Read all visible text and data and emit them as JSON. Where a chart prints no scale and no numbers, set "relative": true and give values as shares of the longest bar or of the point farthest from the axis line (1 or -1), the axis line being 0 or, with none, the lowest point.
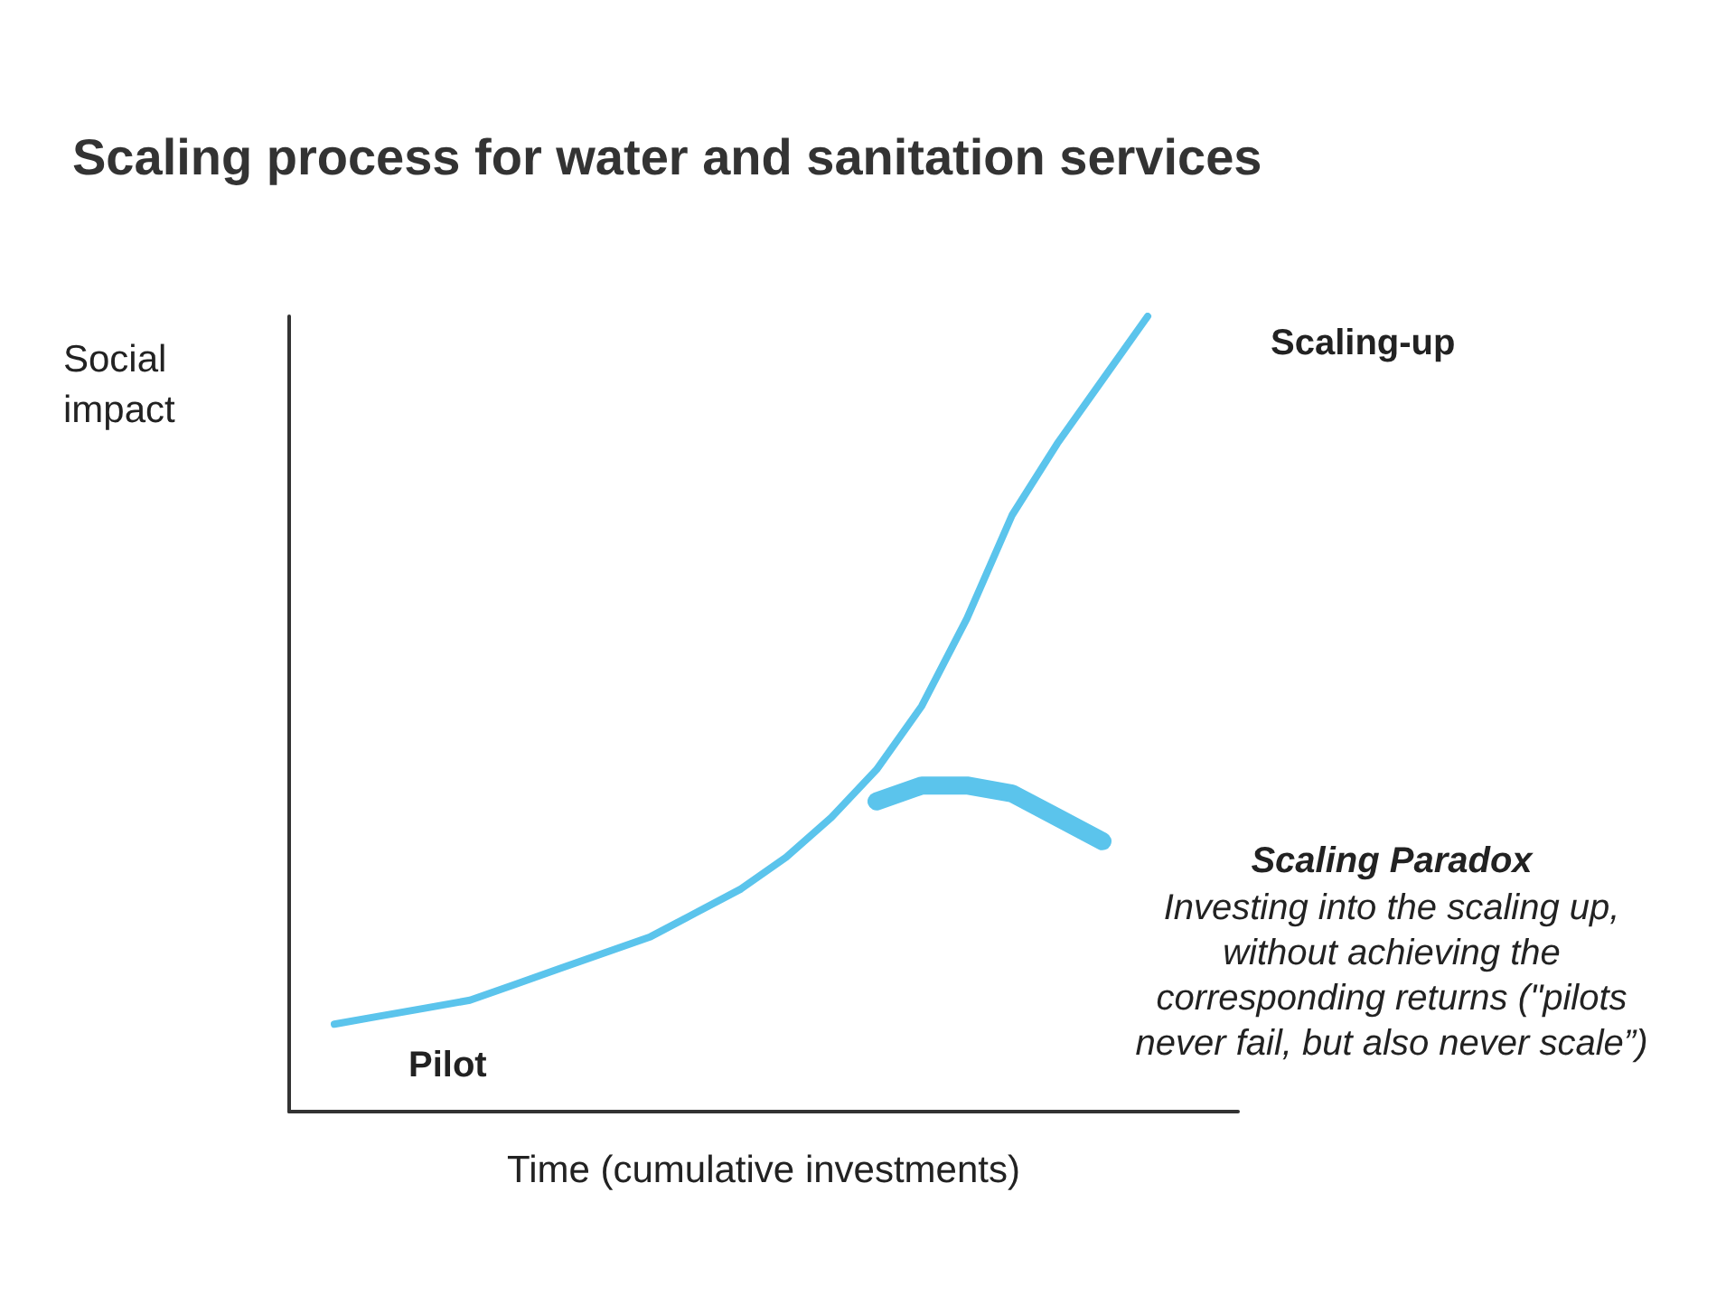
{
  "chart_data": {
    "type": "line",
    "relative": true,
    "title": "Scaling process for water and sanitation services",
    "xlabel": "Time (cumulative investments)",
    "ylabel": "Social impact",
    "legend": false,
    "grid": false,
    "marker": "none",
    "categories": [
      null,
      null,
      null,
      null,
      null,
      null,
      null,
      null,
      null,
      null,
      null,
      null,
      null,
      null,
      null,
      null,
      null,
      null,
      null,
      null,
      null,
      null
    ],
    "series": [
      {
        "name": "Scaling-up",
        "color": "#5bc4ec",
        "values": [
          null,
          0.11,
          0.12,
          0.13,
          0.14,
          0.16,
          0.18,
          0.2,
          0.22,
          0.25,
          0.28,
          0.32,
          0.37,
          0.43,
          0.51,
          0.62,
          0.75,
          0.84,
          0.92,
          1.0,
          null,
          null
        ]
      },
      {
        "color": "#5bc4ec",
        "values": [
          null,
          null,
          null,
          null,
          null,
          null,
          null,
          null,
          null,
          null,
          null,
          null,
          null,
          0.39,
          0.41,
          0.41,
          0.4,
          0.37,
          0.34,
          null,
          null,
          null
        ]
      }
    ],
    "annotations": [
      "Pilot",
      "Scaling Paradox",
      "Investing into the scaling up,\nwithout achieving the\ncorresponding returns (\"pilots\nnever fail, but also never scale”)"
    ]
  }
}
